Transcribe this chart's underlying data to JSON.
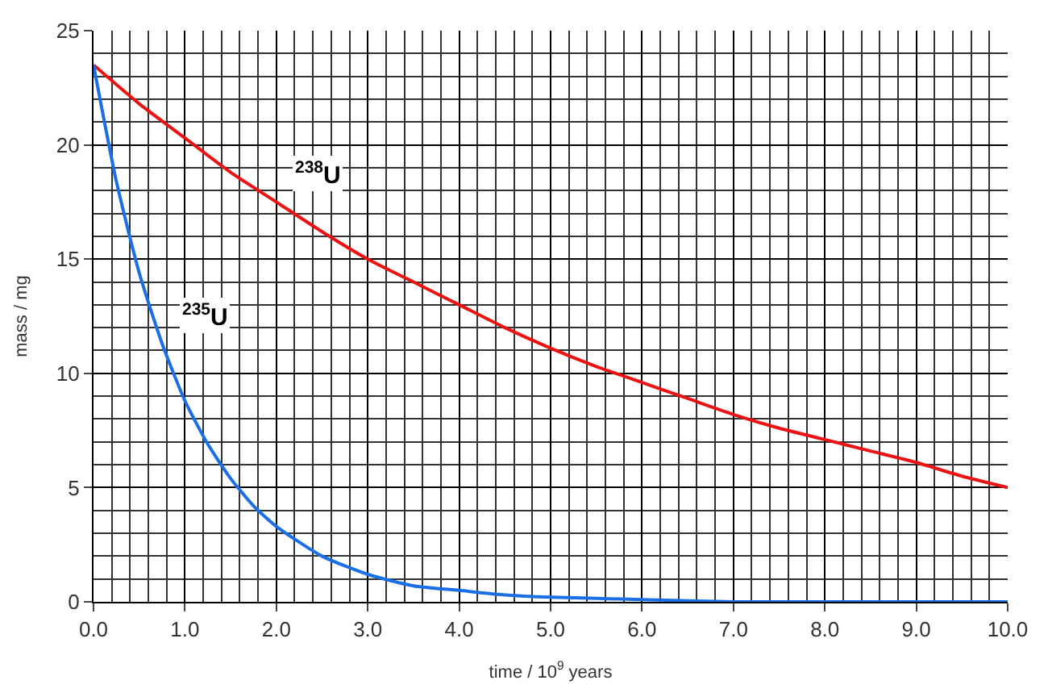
{
  "chart_data": {
    "type": "line",
    "xlabel": "time / 10$^{9}$ years",
    "ylabel": "mass / mg",
    "xlim": [
      0,
      10
    ],
    "ylim": [
      0,
      25
    ],
    "xticks": [
      {
        "value": 0,
        "label": "0.0"
      },
      {
        "value": 1,
        "label": "1.0"
      },
      {
        "value": 2,
        "label": "2.0"
      },
      {
        "value": 3,
        "label": "3.0"
      },
      {
        "value": 4,
        "label": "4.0"
      },
      {
        "value": 5,
        "label": "5.0"
      },
      {
        "value": 6,
        "label": "6.0"
      },
      {
        "value": 7,
        "label": "7.0"
      },
      {
        "value": 8,
        "label": "8.0"
      },
      {
        "value": 9,
        "label": "9.0"
      },
      {
        "value": 10,
        "label": "10.0"
      }
    ],
    "yticks": [
      0,
      5,
      10,
      15,
      20,
      25
    ],
    "grid": true,
    "legend": false,
    "marker": "none",
    "line_style": "solid",
    "series": [
      {
        "name": "$^{238}$U",
        "color": "#ee1111",
        "x": [
          0,
          0.5,
          1,
          1.5,
          2,
          2.5,
          3,
          3.5,
          4,
          4.5,
          5,
          5.5,
          6,
          6.5,
          7,
          7.5,
          8,
          8.5,
          9,
          9.5,
          10
        ],
        "values": [
          23.5,
          21.8,
          20.3,
          18.8,
          17.5,
          16.2,
          15.0,
          14.0,
          13.0,
          12.0,
          11.1,
          10.3,
          9.6,
          8.9,
          8.2,
          7.6,
          7.1,
          6.6,
          6.1,
          5.5,
          5.0
        ]
      },
      {
        "name": "$^{235}$U",
        "color": "#1a6fe8",
        "x": [
          0,
          0.25,
          0.5,
          0.75,
          1,
          1.25,
          1.5,
          1.75,
          2,
          2.5,
          3,
          3.5,
          4,
          4.5,
          5,
          6,
          7,
          8,
          10
        ],
        "values": [
          23.5,
          18.4,
          14.4,
          11.3,
          8.8,
          6.9,
          5.4,
          4.2,
          3.3,
          2.0,
          1.2,
          0.7,
          0.5,
          0.3,
          0.2,
          0.1,
          0.0,
          0.0,
          0.0
        ]
      }
    ]
  }
}
